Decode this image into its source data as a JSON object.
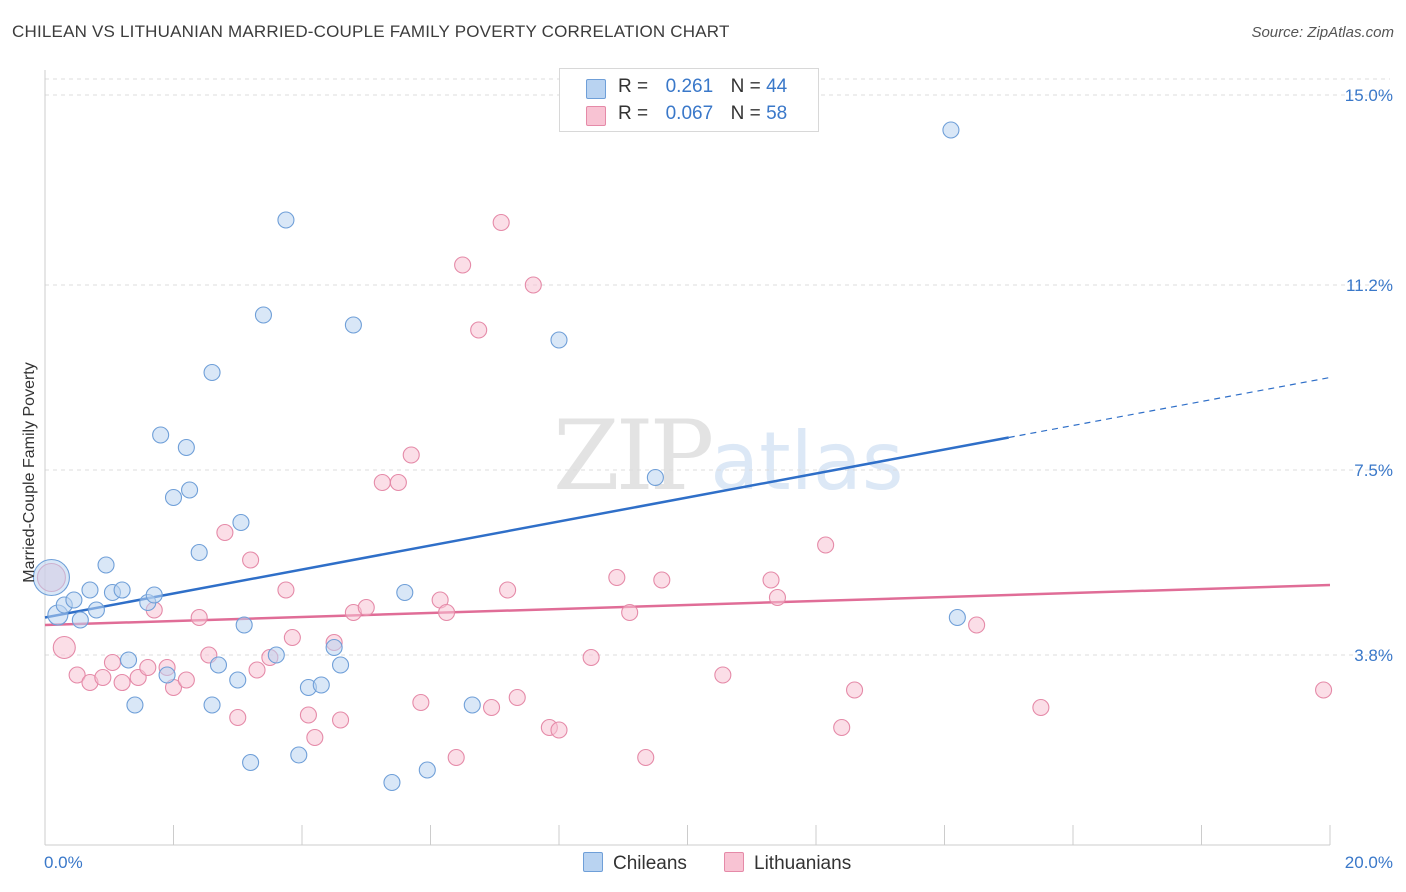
{
  "title": "CHILEAN VS LITHUANIAN MARRIED-COUPLE FAMILY POVERTY CORRELATION CHART",
  "source": "Source: ZipAtlas.com",
  "watermark": {
    "zip": "ZIP",
    "atlas": "atlas"
  },
  "legend": {
    "r_label": "R =",
    "n_label": "N =",
    "series": [
      {
        "r": "0.261",
        "n": "44"
      },
      {
        "r": "0.067",
        "n": "58"
      }
    ]
  },
  "colors": {
    "chileans_fill": "#b9d3f1",
    "chileans_stroke": "#6f9fd8",
    "chileans_line": "#2f6fc8",
    "lithuanians_fill": "#f8c3d3",
    "lithuanians_stroke": "#e58aa8",
    "lithuanians_line": "#e06d97",
    "tick_label": "#3a78c9"
  },
  "chart_data": {
    "type": "scatter",
    "title": "CHILEAN VS LITHUANIAN MARRIED-COUPLE FAMILY POVERTY CORRELATION CHART",
    "xlabel": "",
    "ylabel": "Married-Couple Family Poverty",
    "xlim": [
      0,
      20
    ],
    "ylim": [
      0,
      15.5
    ],
    "x_ticks": [
      {
        "value": 0,
        "label": "0.0%"
      },
      {
        "value": 20,
        "label": "20.0%"
      }
    ],
    "y_ticks": [
      {
        "value": 3.8,
        "label": "3.8%"
      },
      {
        "value": 7.5,
        "label": "7.5%"
      },
      {
        "value": 11.2,
        "label": "11.2%"
      },
      {
        "value": 15.0,
        "label": "15.0%"
      }
    ],
    "grid": true,
    "legend_position": "top-center",
    "series": [
      {
        "name": "Chileans",
        "r": 0.261,
        "n": 44,
        "trend": {
          "x0": 0,
          "y0": 4.55,
          "x1": 15.0,
          "y1": 8.15,
          "x_dashed_end": 20,
          "y_dashed_end": 9.35
        },
        "points": [
          [
            0.1,
            5.35,
            18
          ],
          [
            0.2,
            4.6,
            10
          ],
          [
            0.3,
            4.8,
            8
          ],
          [
            0.45,
            4.9,
            8
          ],
          [
            0.55,
            4.5,
            8
          ],
          [
            0.7,
            5.1,
            8
          ],
          [
            0.8,
            4.7,
            8
          ],
          [
            0.95,
            5.6,
            8
          ],
          [
            1.05,
            5.05,
            8
          ],
          [
            1.2,
            5.1,
            8
          ],
          [
            1.3,
            3.7,
            8
          ],
          [
            1.4,
            2.8,
            8
          ],
          [
            1.6,
            4.85,
            8
          ],
          [
            1.7,
            5.0,
            8
          ],
          [
            1.8,
            8.2,
            8
          ],
          [
            1.9,
            3.4,
            8
          ],
          [
            2.0,
            6.95,
            8
          ],
          [
            2.2,
            7.95,
            8
          ],
          [
            2.25,
            7.1,
            8
          ],
          [
            2.4,
            5.85,
            8
          ],
          [
            2.6,
            2.8,
            8
          ],
          [
            2.6,
            9.45,
            8
          ],
          [
            2.7,
            3.6,
            8
          ],
          [
            3.0,
            3.3,
            8
          ],
          [
            3.05,
            6.45,
            8
          ],
          [
            3.1,
            4.4,
            8
          ],
          [
            3.2,
            1.65,
            8
          ],
          [
            3.4,
            10.6,
            8
          ],
          [
            3.6,
            3.8,
            8
          ],
          [
            3.75,
            12.5,
            8
          ],
          [
            3.95,
            1.8,
            8
          ],
          [
            4.1,
            3.15,
            8
          ],
          [
            4.3,
            3.2,
            8
          ],
          [
            4.5,
            3.95,
            8
          ],
          [
            4.6,
            3.6,
            8
          ],
          [
            4.8,
            10.4,
            8
          ],
          [
            5.4,
            1.25,
            8
          ],
          [
            5.6,
            5.05,
            8
          ],
          [
            5.95,
            1.5,
            8
          ],
          [
            6.65,
            2.8,
            8
          ],
          [
            8.0,
            10.1,
            8
          ],
          [
            9.5,
            7.35,
            8
          ],
          [
            14.1,
            14.3,
            8
          ],
          [
            14.2,
            4.55,
            8
          ]
        ]
      },
      {
        "name": "Lithuanians",
        "r": 0.067,
        "n": 58,
        "trend": {
          "x0": 0,
          "y0": 4.4,
          "x1": 20,
          "y1": 5.2
        },
        "points": [
          [
            0.1,
            5.35,
            14
          ],
          [
            0.3,
            3.95,
            11
          ],
          [
            0.5,
            3.4,
            8
          ],
          [
            0.7,
            3.25,
            8
          ],
          [
            0.9,
            3.35,
            8
          ],
          [
            1.05,
            3.65,
            8
          ],
          [
            1.2,
            3.25,
            8
          ],
          [
            1.45,
            3.35,
            8
          ],
          [
            1.6,
            3.55,
            8
          ],
          [
            1.7,
            4.7,
            8
          ],
          [
            1.9,
            3.55,
            8
          ],
          [
            2.0,
            3.15,
            8
          ],
          [
            2.2,
            3.3,
            8
          ],
          [
            2.4,
            4.55,
            8
          ],
          [
            2.55,
            3.8,
            8
          ],
          [
            2.8,
            6.25,
            8
          ],
          [
            3.0,
            2.55,
            8
          ],
          [
            3.2,
            5.7,
            8
          ],
          [
            3.3,
            3.5,
            8
          ],
          [
            3.5,
            3.75,
            8
          ],
          [
            3.75,
            5.1,
            8
          ],
          [
            3.85,
            4.15,
            8
          ],
          [
            4.1,
            2.6,
            8
          ],
          [
            4.2,
            2.15,
            8
          ],
          [
            4.5,
            4.05,
            8
          ],
          [
            4.6,
            2.5,
            8
          ],
          [
            4.8,
            4.65,
            8
          ],
          [
            5.0,
            4.75,
            8
          ],
          [
            5.25,
            7.25,
            8
          ],
          [
            5.5,
            7.25,
            8
          ],
          [
            5.7,
            7.8,
            8
          ],
          [
            5.85,
            2.85,
            8
          ],
          [
            6.15,
            4.9,
            8
          ],
          [
            6.25,
            4.65,
            8
          ],
          [
            6.4,
            1.75,
            8
          ],
          [
            6.5,
            11.6,
            8
          ],
          [
            6.75,
            10.3,
            8
          ],
          [
            6.95,
            2.75,
            8
          ],
          [
            7.1,
            12.45,
            8
          ],
          [
            7.2,
            5.1,
            8
          ],
          [
            7.35,
            2.95,
            8
          ],
          [
            7.6,
            11.2,
            8
          ],
          [
            7.85,
            2.35,
            8
          ],
          [
            8.0,
            2.3,
            8
          ],
          [
            8.5,
            3.75,
            8
          ],
          [
            8.9,
            5.35,
            8
          ],
          [
            9.1,
            4.65,
            8
          ],
          [
            9.35,
            1.75,
            8
          ],
          [
            9.6,
            5.3,
            8
          ],
          [
            10.55,
            3.4,
            8
          ],
          [
            11.3,
            5.3,
            8
          ],
          [
            11.4,
            4.95,
            8
          ],
          [
            12.15,
            6.0,
            8
          ],
          [
            12.4,
            2.35,
            8
          ],
          [
            12.6,
            3.1,
            8
          ],
          [
            14.5,
            4.4,
            8
          ],
          [
            15.5,
            2.75,
            8
          ],
          [
            19.9,
            3.1,
            8
          ]
        ]
      }
    ]
  },
  "bottom_legend": [
    "Chileans",
    "Lithuanians"
  ]
}
